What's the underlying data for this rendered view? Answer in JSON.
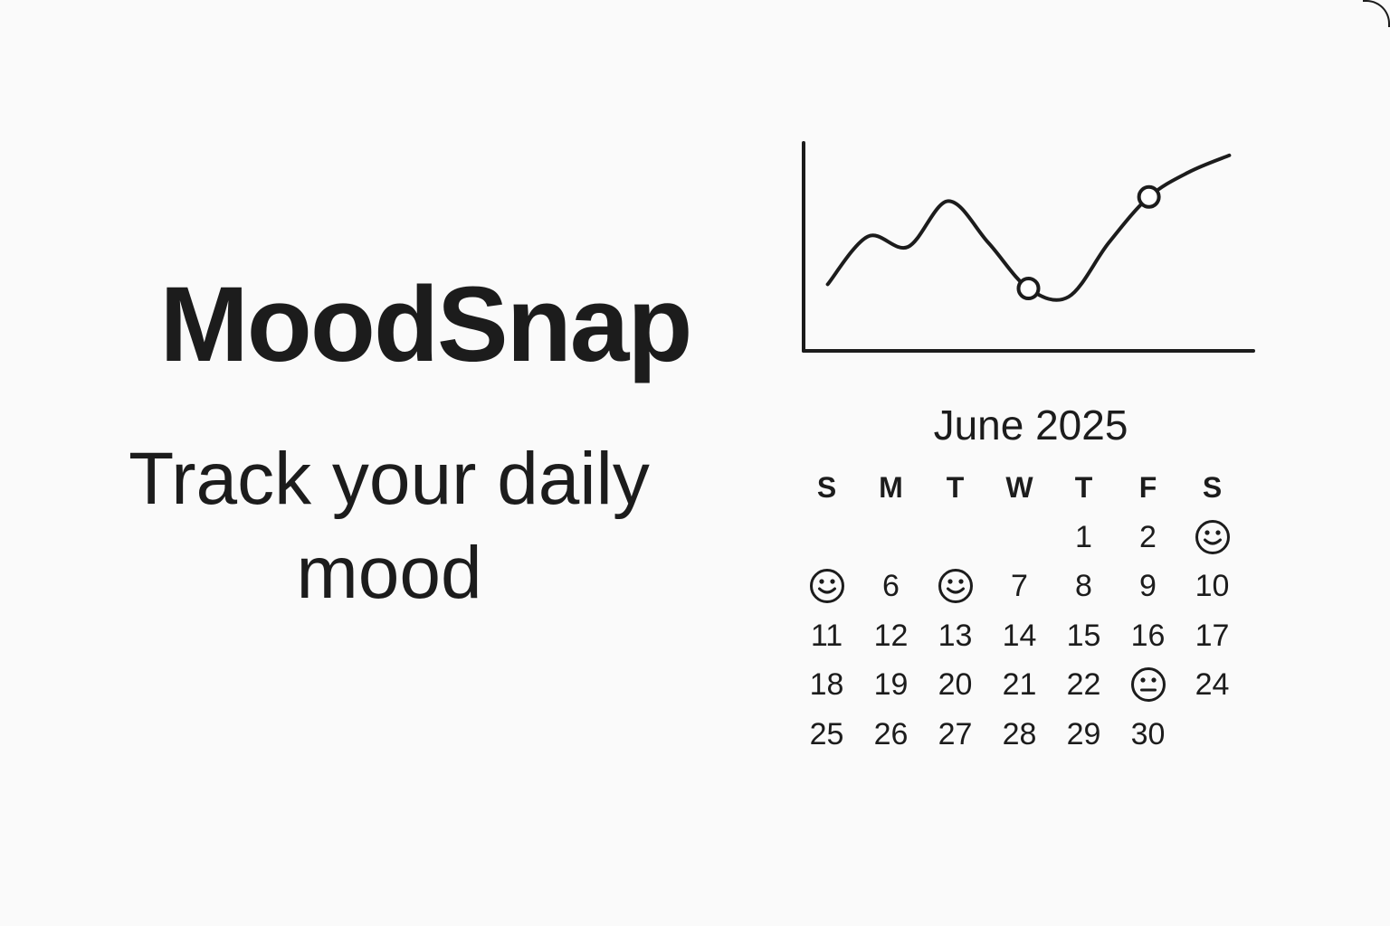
{
  "app": {
    "title": "MoodSnap",
    "tagline": "Track your daily mood"
  },
  "colors": {
    "background": "#fafafa",
    "ink": "#1c1c1c"
  },
  "chart_data": {
    "type": "line",
    "title": "",
    "xlabel": "",
    "ylabel": "",
    "x": [
      0,
      1,
      2,
      3,
      4,
      5,
      6,
      7,
      8,
      9,
      10
    ],
    "series": [
      {
        "values": [
          3.2,
          5.5,
          5.0,
          7.2,
          5.2,
          3.0,
          2.6,
          5.2,
          7.4,
          8.6,
          9.4
        ]
      }
    ],
    "highlighted_indices": [
      5,
      8
    ],
    "xlim": [
      -0.6,
      10.6
    ],
    "ylim": [
      0,
      10
    ],
    "grid": false,
    "axes": "left-and-bottom only, no ticks"
  },
  "calendar": {
    "month_label": "June 2025",
    "weekdays": [
      "S",
      "M",
      "T",
      "W",
      "T",
      "F",
      "S"
    ],
    "cells": [
      {
        "text": ""
      },
      {
        "text": ""
      },
      {
        "text": ""
      },
      {
        "text": ""
      },
      {
        "text": "1"
      },
      {
        "text": "2"
      },
      {
        "icon": "smile-icon"
      },
      {
        "icon": "smile-icon"
      },
      {
        "text": "6"
      },
      {
        "icon": "smile-icon"
      },
      {
        "text": "7"
      },
      {
        "text": "8"
      },
      {
        "text": "9"
      },
      {
        "text": "10"
      },
      {
        "text": "11"
      },
      {
        "text": "12"
      },
      {
        "text": "13"
      },
      {
        "text": "14"
      },
      {
        "text": "15"
      },
      {
        "text": "16"
      },
      {
        "text": "17"
      },
      {
        "text": "18"
      },
      {
        "text": "19"
      },
      {
        "text": "20"
      },
      {
        "text": "21"
      },
      {
        "text": "22"
      },
      {
        "icon": "neutral-face-icon"
      },
      {
        "text": "24"
      },
      {
        "text": "25"
      },
      {
        "text": "26"
      },
      {
        "text": "27"
      },
      {
        "text": "28"
      },
      {
        "text": "29"
      },
      {
        "text": "30"
      },
      {
        "text": ""
      }
    ]
  }
}
